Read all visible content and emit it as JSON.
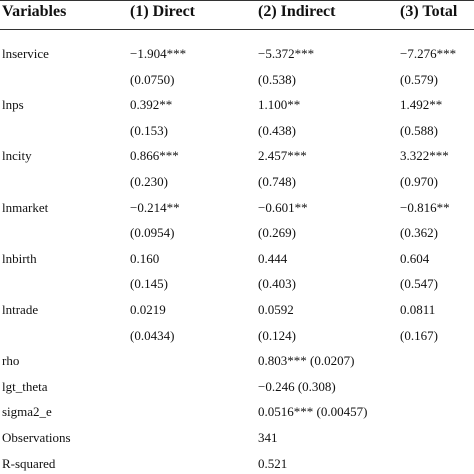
{
  "table": {
    "header": [
      "Variables",
      "(1) Direct",
      "(2) Indirect",
      "(3) Total"
    ],
    "rows": [
      [
        "lnservice",
        "−1.904***",
        "−5.372***",
        "−7.276***"
      ],
      [
        null,
        "(0.0750)",
        "(0.538)",
        "(0.579)"
      ],
      [
        "lnps",
        "0.392**",
        "1.100**",
        "1.492**"
      ],
      [
        null,
        "(0.153)",
        "(0.438)",
        "(0.588)"
      ],
      [
        "lncity",
        "0.866***",
        "2.457***",
        "3.322***"
      ],
      [
        null,
        "(0.230)",
        "(0.748)",
        "(0.970)"
      ],
      [
        "lnmarket",
        "−0.214**",
        "−0.601**",
        "−0.816**"
      ],
      [
        null,
        "(0.0954)",
        "(0.269)",
        "(0.362)"
      ],
      [
        "lnbirth",
        "0.160",
        "0.444",
        "0.604"
      ],
      [
        null,
        "(0.145)",
        "(0.403)",
        "(0.547)"
      ],
      [
        "lntrade",
        "0.0219",
        "0.0592",
        "0.0811"
      ],
      [
        null,
        "(0.0434)",
        "(0.124)",
        "(0.167)"
      ],
      [
        "rho",
        null,
        "0.803*** (0.0207)",
        null
      ],
      [
        "lgt_theta",
        null,
        "−0.246 (0.308)",
        null
      ],
      [
        "sigma2_e",
        null,
        "0.0516*** (0.00457)",
        null
      ],
      [
        "Observations",
        null,
        "341",
        null
      ],
      [
        "R-squared",
        null,
        "0.521",
        null
      ]
    ]
  }
}
